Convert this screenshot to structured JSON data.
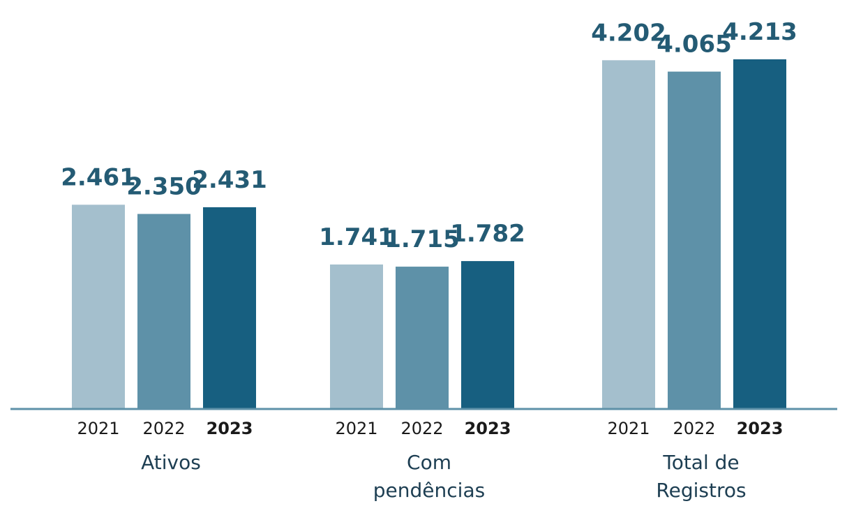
{
  "chart_data": {
    "type": "bar",
    "categories": [
      "Ativos",
      "Com pendências",
      "Total de Registros"
    ],
    "series": [
      {
        "name": "2021",
        "color": "#a4bfcd",
        "values": [
          2461,
          1741,
          4202
        ],
        "value_labels": [
          "2.461",
          "1.741",
          "4.202"
        ]
      },
      {
        "name": "2022",
        "color": "#5e91a8",
        "values": [
          2350,
          1715,
          4065
        ],
        "value_labels": [
          "2.350",
          "1.715",
          "4.065"
        ]
      },
      {
        "name": "2023",
        "color": "#175f80",
        "values": [
          2431,
          1782,
          4213
        ],
        "value_labels": [
          "2.431",
          "1.782",
          "4.213"
        ]
      }
    ]
  }
}
